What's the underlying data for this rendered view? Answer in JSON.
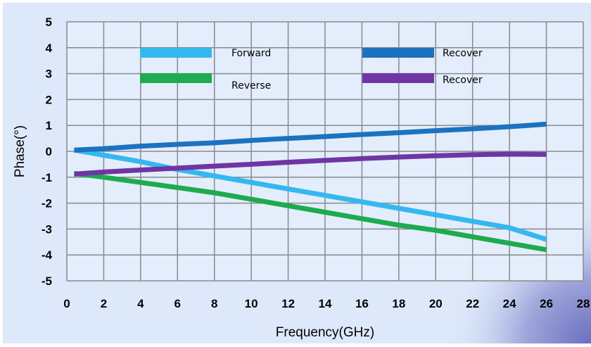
{
  "chart_data": {
    "type": "line",
    "title": "",
    "xlabel": "Frequency(GHz)",
    "ylabel": "Phase(°)",
    "xlim": [
      0,
      28
    ],
    "ylim": [
      -5,
      5
    ],
    "x_ticks": [
      0,
      2,
      4,
      6,
      8,
      10,
      12,
      14,
      16,
      18,
      20,
      22,
      24,
      26,
      28
    ],
    "y_ticks": [
      5,
      4,
      3,
      2,
      1,
      0,
      -1,
      -2,
      -3,
      -4,
      -5
    ],
    "grid": true,
    "legend_position": "top",
    "series": [
      {
        "name": "Forward",
        "color": "#33B8F0",
        "x": [
          0.4,
          2,
          4,
          6,
          8,
          10,
          12,
          14,
          16,
          18,
          20,
          22,
          24,
          26
        ],
        "y": [
          0.05,
          -0.15,
          -0.4,
          -0.7,
          -0.95,
          -1.2,
          -1.45,
          -1.7,
          -1.95,
          -2.2,
          -2.45,
          -2.7,
          -2.95,
          -3.4
        ]
      },
      {
        "name": "Reverse",
        "color": "#1EAA4E",
        "x": [
          0.4,
          2,
          4,
          6,
          8,
          10,
          12,
          14,
          16,
          18,
          20,
          22,
          24,
          26
        ],
        "y": [
          -0.85,
          -1.0,
          -1.2,
          -1.4,
          -1.6,
          -1.85,
          -2.1,
          -2.35,
          -2.6,
          -2.85,
          -3.05,
          -3.3,
          -3.55,
          -3.8
        ]
      },
      {
        "name": "Recover",
        "color": "#1A72C0",
        "x": [
          0.4,
          2,
          4,
          6,
          8,
          10,
          12,
          14,
          16,
          18,
          20,
          22,
          24,
          26
        ],
        "y": [
          0.05,
          0.1,
          0.2,
          0.27,
          0.33,
          0.42,
          0.5,
          0.57,
          0.65,
          0.72,
          0.8,
          0.87,
          0.95,
          1.05
        ]
      },
      {
        "name": "Recover",
        "color": "#7035A5",
        "x": [
          0.4,
          2,
          4,
          6,
          8,
          10,
          12,
          14,
          16,
          18,
          20,
          22,
          24,
          26
        ],
        "y": [
          -0.88,
          -0.8,
          -0.72,
          -0.65,
          -0.57,
          -0.5,
          -0.42,
          -0.35,
          -0.28,
          -0.22,
          -0.17,
          -0.13,
          -0.11,
          -0.12
        ]
      }
    ]
  }
}
